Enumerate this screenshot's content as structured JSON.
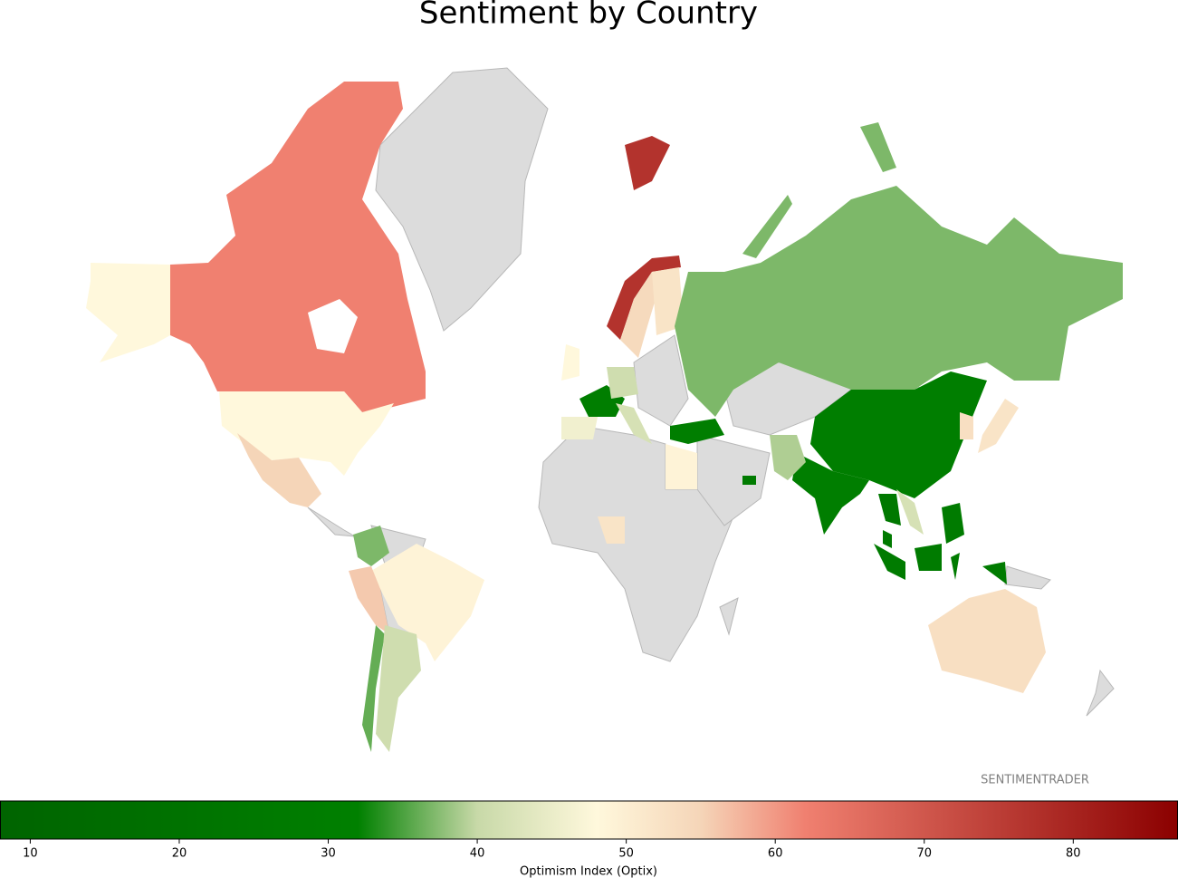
{
  "chart_data": {
    "type": "choropleth",
    "title": "Sentiment by Country",
    "colorbar_label": "Optimism Index (Optix)",
    "watermark": "SENTIMENTRADER",
    "values": [
      62,
      48,
      55,
      77,
      54,
      52,
      37,
      30,
      30,
      52,
      53,
      28,
      28,
      27,
      25,
      42,
      39,
      28,
      30,
      83,
      49,
      52,
      30,
      41,
      48,
      46,
      42,
      49,
      37,
      56,
      36,
      41,
      53
    ],
    "clim": [
      8,
      87
    ],
    "cticks": [
      10,
      20,
      30,
      40,
      50,
      60,
      70,
      80
    ],
    "colorscale": [
      [
        8,
        "#006400"
      ],
      [
        32,
        "#008000"
      ],
      [
        40,
        "#c8d9a8"
      ],
      [
        48,
        "#fff8dc"
      ],
      [
        55,
        "#f5d5b8"
      ],
      [
        62,
        "#f08070"
      ],
      [
        87,
        "#8b0000"
      ]
    ]
  }
}
